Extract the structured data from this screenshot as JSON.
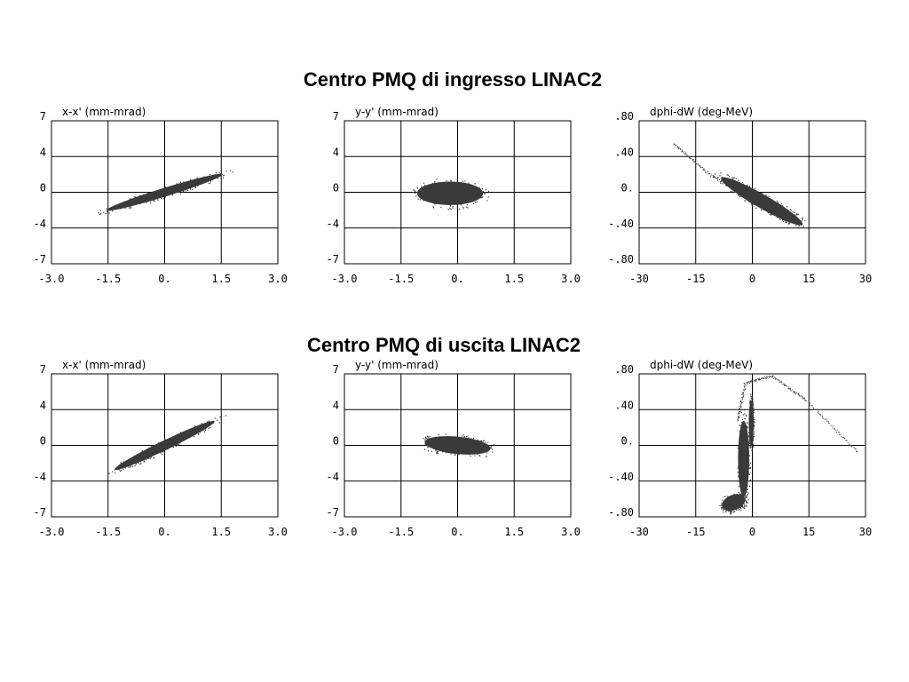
{
  "titles": {
    "top": "Centro PMQ di ingresso LINAC2",
    "bottom": "Centro PMQ di uscita LINAC2"
  },
  "colors": {
    "beam": "#3a3a3a",
    "grid": "#000000"
  },
  "chart_data": [
    {
      "type": "scatter",
      "section": "ingresso",
      "title": "x-x' (mm-mrad)",
      "xlim": [
        -3.0,
        3.0
      ],
      "ylim": [
        -7,
        7
      ],
      "grid": true,
      "x_ticks": [
        "-3.0",
        "-1.5",
        "0.",
        "1.5",
        "3.0"
      ],
      "y_ticks": [
        "7",
        "4",
        "0",
        "-4",
        "-7"
      ],
      "blobs": [
        {
          "cx": 0.0,
          "cy": 0.0,
          "a": 1.75,
          "b": 0.5,
          "tilt": 0.3
        }
      ]
    },
    {
      "type": "scatter",
      "section": "ingresso",
      "title": "y-y' (mm-mrad)",
      "xlim": [
        -3.0,
        3.0
      ],
      "ylim": [
        -7,
        7
      ],
      "grid": true,
      "x_ticks": [
        "-3.0",
        "-1.5",
        "0.",
        "1.5",
        "3.0"
      ],
      "y_ticks": [
        "7",
        "4",
        "0",
        "-4",
        "-7"
      ],
      "blobs": [
        {
          "cx": -0.2,
          "cy": -0.1,
          "a": 0.95,
          "b": 1.35,
          "tilt": 0.0
        }
      ]
    },
    {
      "type": "scatter",
      "section": "ingresso",
      "title": "dphi-dW (deg-MeV)",
      "xlim": [
        -30,
        30
      ],
      "ylim": [
        -0.8,
        0.8
      ],
      "grid": true,
      "x_ticks": [
        "-30",
        "-15",
        "0",
        "15",
        "30"
      ],
      "y_ticks": [
        ".80",
        ".40",
        "0.",
        "-.40",
        "-.80"
      ],
      "blobs": [
        {
          "cx": 2.5,
          "cy": -0.1,
          "a": 13.5,
          "b": 0.09,
          "tilt": -0.52
        }
      ],
      "tails": [
        [
          [
            -21,
            0.55
          ],
          [
            -12,
            0.22
          ],
          [
            0,
            -0.1
          ],
          [
            10,
            -0.36
          ]
        ]
      ]
    },
    {
      "type": "scatter",
      "section": "uscita",
      "title": "x-x' (mm-mrad)",
      "xlim": [
        -3.0,
        3.0
      ],
      "ylim": [
        -7,
        7
      ],
      "grid": true,
      "x_ticks": [
        "-3.0",
        "-1.5",
        "0.",
        "1.5",
        "3.0"
      ],
      "y_ticks": [
        "7",
        "4",
        "0",
        "-4",
        "-7"
      ],
      "blobs": [
        {
          "cx": 0.0,
          "cy": 0.0,
          "a": 1.6,
          "b": 0.55,
          "tilt": 0.45
        }
      ]
    },
    {
      "type": "scatter",
      "section": "uscita",
      "title": "y-y' (mm-mrad)",
      "xlim": [
        -3.0,
        3.0
      ],
      "ylim": [
        -7,
        7
      ],
      "grid": true,
      "x_ticks": [
        "-3.0",
        "-1.5",
        "0.",
        "1.5",
        "3.0"
      ],
      "y_ticks": [
        "7",
        "4",
        "0",
        "-4",
        "-7"
      ],
      "blobs": [
        {
          "cx": 0.0,
          "cy": 0.0,
          "a": 0.95,
          "b": 1.0,
          "tilt": -0.1
        }
      ]
    },
    {
      "type": "scatter",
      "section": "uscita",
      "title": "dphi-dW (deg-MeV)",
      "xlim": [
        -30,
        30
      ],
      "ylim": [
        -0.8,
        0.8
      ],
      "grid": true,
      "x_ticks": [
        "-30",
        "-15",
        "0",
        "15",
        "30"
      ],
      "y_ticks": [
        ".80",
        ".40",
        "0.",
        "-.40",
        "-.80"
      ],
      "blobs": [
        {
          "cx": -2.3,
          "cy": -0.15,
          "a": 1.6,
          "b": 0.5,
          "tilt": 0.0
        },
        {
          "cx": -0.3,
          "cy": 0.25,
          "a": 0.7,
          "b": 0.3,
          "tilt": 0.0
        },
        {
          "cx": -5.0,
          "cy": -0.64,
          "a": 3.5,
          "b": 0.1,
          "tilt": 0.4
        }
      ],
      "tails": [
        [
          [
            -4,
            0.28
          ],
          [
            -2,
            0.7
          ],
          [
            5,
            0.78
          ],
          [
            14,
            0.52
          ],
          [
            28,
            -0.08
          ]
        ]
      ]
    }
  ]
}
